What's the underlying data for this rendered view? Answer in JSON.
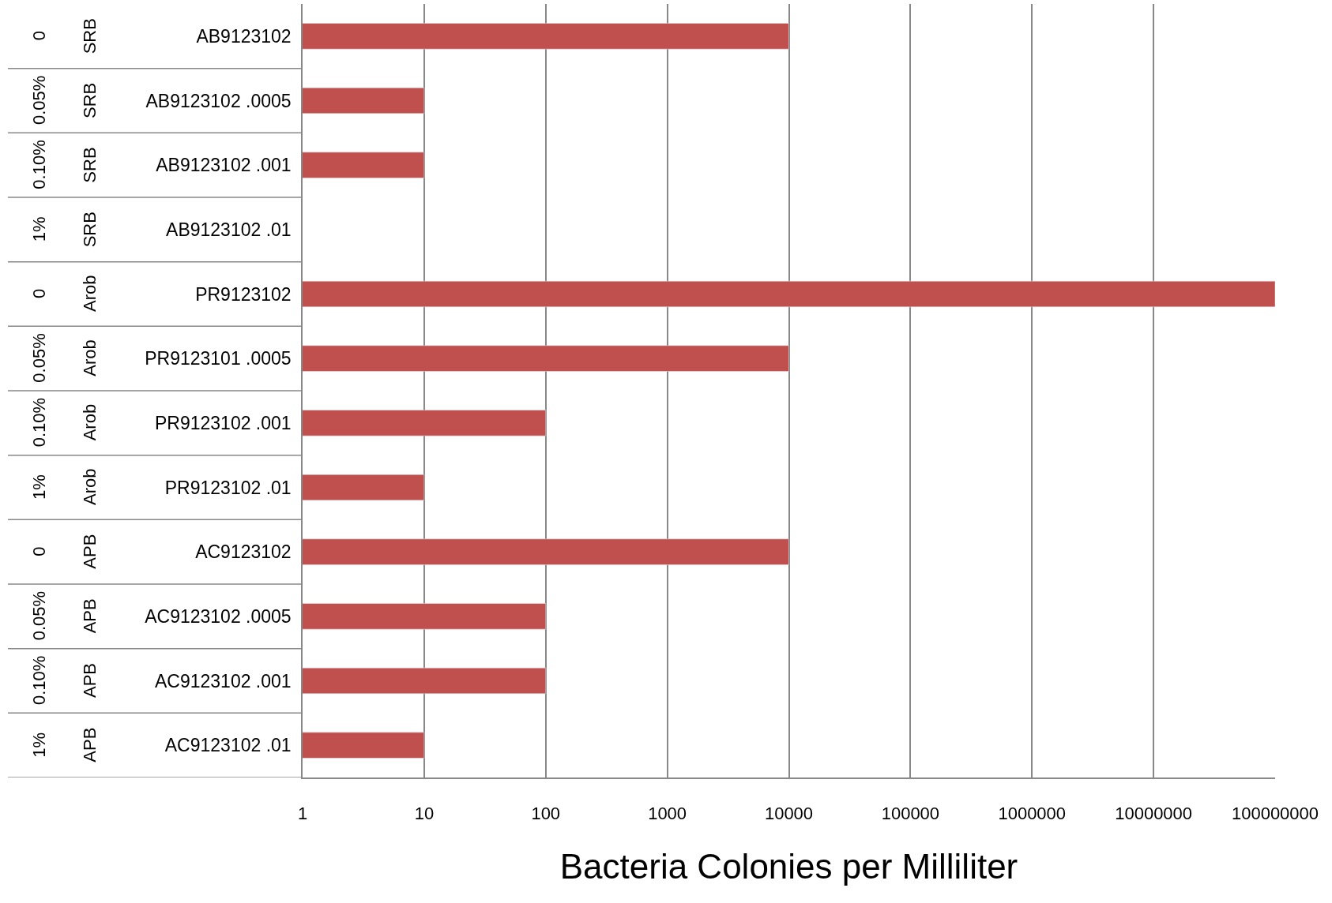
{
  "chart_data": {
    "type": "bar",
    "orientation": "horizontal",
    "log": "x",
    "xlabel": "Bacteria Colonies per Milliliter",
    "categories": [
      "AB9123102",
      "AB9123102 .0005",
      "AB9123102 .001",
      "AB9123102 .01",
      "PR9123102",
      "PR9123101 .0005",
      "PR9123102 .001",
      "PR9123102 .01",
      "AC9123102",
      "AC9123102 .0005",
      "AC9123102 .001",
      "AC9123102 .01"
    ],
    "values": [
      10000,
      10,
      10,
      null,
      100000000,
      10000,
      100,
      10,
      10000,
      100,
      100,
      10
    ],
    "color": "#c0504d",
    "xlim": [
      1,
      100000000
    ],
    "xticks": [
      1,
      10,
      100,
      1000,
      10000,
      100000,
      1000000,
      10000000,
      100000000
    ],
    "grid": "x",
    "annotations": [
      "0",
      "SRB",
      "0.05%",
      "SRB",
      "0.10%",
      "SRB",
      "1%",
      "SRB",
      "0",
      "Arob",
      "0.05%",
      "Arob",
      "0.10%",
      "Arob",
      "1%",
      "Arob",
      "0",
      "APB",
      "0.05%",
      "APB",
      "0.10%",
      "APB",
      "1%",
      "APB"
    ]
  }
}
